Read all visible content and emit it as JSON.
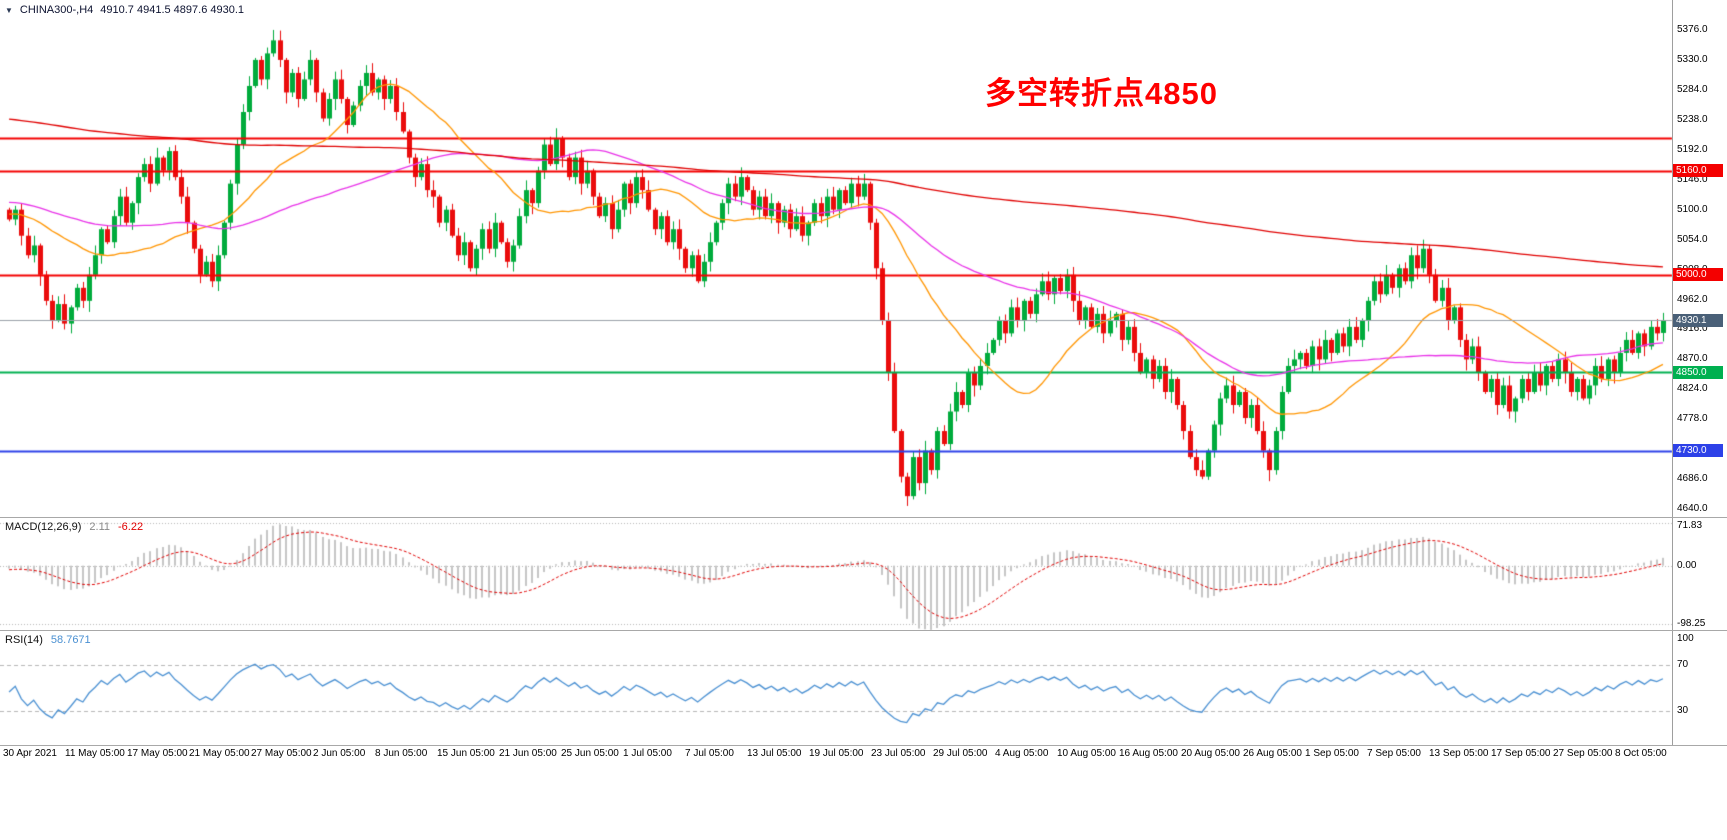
{
  "window": {
    "bg": "#ffffff"
  },
  "header": {
    "symbol_period": "CHINA300-,H4",
    "ohlc_text": "4910.7 4941.5 4897.6 4930.1"
  },
  "annotation": {
    "text": "多空转折点4850",
    "color": "#ff0000"
  },
  "colors": {
    "bull": "#00ab3c",
    "bear": "#ea0c0c",
    "ma_fast": "#ff9500",
    "ma_mid": "#e832e8",
    "ma_slow": "#e00000",
    "hline_red": "#f40000",
    "hline_green": "#00b050",
    "hline_blue": "#2d41e8",
    "price_line": "#9aa0a8",
    "price_badge_bg": "#4a6078",
    "macd_hist": "#c6c6c6",
    "macd_signal": "#e00000",
    "rsi_line": "#4a90d2",
    "axis_text": "#000000",
    "divider": "#a8a8a8"
  },
  "chart_data": {
    "type": "candlestick",
    "symbol": "CHINA300-",
    "timeframe": "H4",
    "current_bar": {
      "open": 4910.7,
      "high": 4941.5,
      "low": 4897.6,
      "close": 4930.1
    },
    "price_axis": {
      "labels": [
        "5376.0",
        "5330.0",
        "5284.0",
        "5238.0",
        "5192.0",
        "5146.0",
        "5100.0",
        "5054.0",
        "5008.0",
        "4962.0",
        "4916.0",
        "4870.0",
        "4824.0",
        "4778.0",
        "4732.0",
        "4686.0",
        "4640.0"
      ],
      "step": 46.0,
      "view_range": [
        4628,
        5422
      ]
    },
    "hlines": [
      {
        "value": 5210.0,
        "label": "5210.0",
        "color_key": "hline_red",
        "badge": false
      },
      {
        "value": 5160.0,
        "label": "5160.0",
        "color_key": "hline_red",
        "badge": true
      },
      {
        "value": 5000.0,
        "label": "5000.0",
        "color_key": "hline_red",
        "badge": true
      },
      {
        "value": 4850.0,
        "label": "4850.0",
        "color_key": "hline_green",
        "badge": true
      },
      {
        "value": 4730.0,
        "label": "4730.0",
        "color_key": "hline_blue",
        "badge": true
      }
    ],
    "current_price": {
      "value": 4930.1,
      "label": "4930.1"
    },
    "time_labels": [
      "30 Apr 2021",
      "11 May 05:00",
      "17 May 05:00",
      "21 May 05:00",
      "27 May 05:00",
      "2 Jun 05:00",
      "8 Jun 05:00",
      "15 Jun 05:00",
      "21 Jun 05:00",
      "25 Jun 05:00",
      "1 Jul 05:00",
      "7 Jul 05:00",
      "13 Jul 05:00",
      "19 Jul 05:00",
      "23 Jul 05:00",
      "29 Jul 05:00",
      "4 Aug 05:00",
      "10 Aug 05:00",
      "16 Aug 05:00",
      "20 Aug 05:00",
      "26 Aug 05:00",
      "1 Sep 05:00",
      "7 Sep 05:00",
      "13 Sep 05:00",
      "17 Sep 05:00",
      "27 Sep 05:00",
      "8 Oct 05:00"
    ],
    "closes": [
      5085,
      5100,
      5060,
      5030,
      5045,
      5000,
      4960,
      4930,
      4955,
      4925,
      4950,
      4980,
      4960,
      5000,
      5030,
      5070,
      5050,
      5090,
      5120,
      5080,
      5110,
      5150,
      5170,
      5140,
      5180,
      5160,
      5190,
      5150,
      5120,
      5080,
      5040,
      5000,
      5020,
      4990,
      5030,
      5080,
      5140,
      5200,
      5250,
      5290,
      5330,
      5300,
      5340,
      5360,
      5330,
      5280,
      5310,
      5270,
      5300,
      5330,
      5280,
      5240,
      5270,
      5300,
      5270,
      5230,
      5260,
      5290,
      5310,
      5280,
      5300,
      5270,
      5290,
      5250,
      5220,
      5180,
      5150,
      5170,
      5130,
      5120,
      5080,
      5100,
      5060,
      5030,
      5050,
      5010,
      5040,
      5070,
      5040,
      5080,
      5050,
      5020,
      5045,
      5090,
      5130,
      5110,
      5160,
      5200,
      5170,
      5210,
      5180,
      5150,
      5180,
      5140,
      5160,
      5120,
      5090,
      5110,
      5070,
      5100,
      5140,
      5110,
      5150,
      5130,
      5100,
      5070,
      5090,
      5050,
      5070,
      5040,
      5010,
      5030,
      4990,
      5020,
      5050,
      5080,
      5110,
      5140,
      5120,
      5150,
      5130,
      5100,
      5120,
      5090,
      5110,
      5080,
      5100,
      5070,
      5090,
      5060,
      5080,
      5110,
      5090,
      5120,
      5100,
      5130,
      5110,
      5140,
      5120,
      5140,
      5080,
      5010,
      4930,
      4850,
      4760,
      4690,
      4660,
      4720,
      4680,
      4730,
      4700,
      4760,
      4740,
      4790,
      4820,
      4800,
      4850,
      4830,
      4860,
      4880,
      4900,
      4930,
      4910,
      4950,
      4930,
      4960,
      4940,
      4970,
      4990,
      4970,
      4995,
      4975,
      5000,
      4960,
      4930,
      4950,
      4920,
      4940,
      4910,
      4930,
      4940,
      4900,
      4920,
      4880,
      4850,
      4870,
      4840,
      4860,
      4820,
      4840,
      4800,
      4760,
      4720,
      4700,
      4690,
      4730,
      4770,
      4810,
      4830,
      4800,
      4820,
      4780,
      4800,
      4760,
      4730,
      4700,
      4760,
      4820,
      4860,
      4870,
      4880,
      4860,
      4890,
      4870,
      4900,
      4880,
      4910,
      4890,
      4920,
      4900,
      4930,
      4960,
      4990,
      4970,
      5000,
      4980,
      5010,
      4990,
      5030,
      5010,
      5040,
      5000,
      4960,
      4980,
      4930,
      4950,
      4900,
      4870,
      4890,
      4850,
      4820,
      4840,
      4800,
      4830,
      4790,
      4810,
      4840,
      4820,
      4850,
      4830,
      4860,
      4840,
      4870,
      4850,
      4820,
      4840,
      4810,
      4830,
      4860,
      4840,
      4870,
      4850,
      4880,
      4900,
      4880,
      4910,
      4890,
      4920,
      4910,
      4930.1
    ],
    "prehistory": {
      "from": 5400,
      "to": 5080,
      "count": 300
    },
    "wick_overrides": {
      "43": {
        "high": 5376
      },
      "146": {
        "low": 4645
      },
      "194": {
        "low": 4686
      },
      "230": {
        "high": 5054
      }
    },
    "moving_averages": [
      {
        "period": 24,
        "color_key": "ma_fast"
      },
      {
        "period": 60,
        "color_key": "ma_mid"
      },
      {
        "period": 300,
        "color_key": "ma_slow"
      }
    ],
    "indicators": {
      "macd": {
        "name": "MACD(12,26,9)",
        "main_value": "2.11",
        "signal_value": "-6.22",
        "params": [
          12,
          26,
          9
        ],
        "axis_labels": [
          "71.83",
          "0.00",
          "-98.25"
        ],
        "draw_range": [
          -108,
          80
        ]
      },
      "rsi": {
        "name": "RSI(14)",
        "value": "58.7671",
        "period": 14,
        "axis_labels": [
          "100",
          "70",
          "30"
        ],
        "levels": [
          70,
          30
        ],
        "range": [
          0,
          100
        ]
      }
    }
  }
}
